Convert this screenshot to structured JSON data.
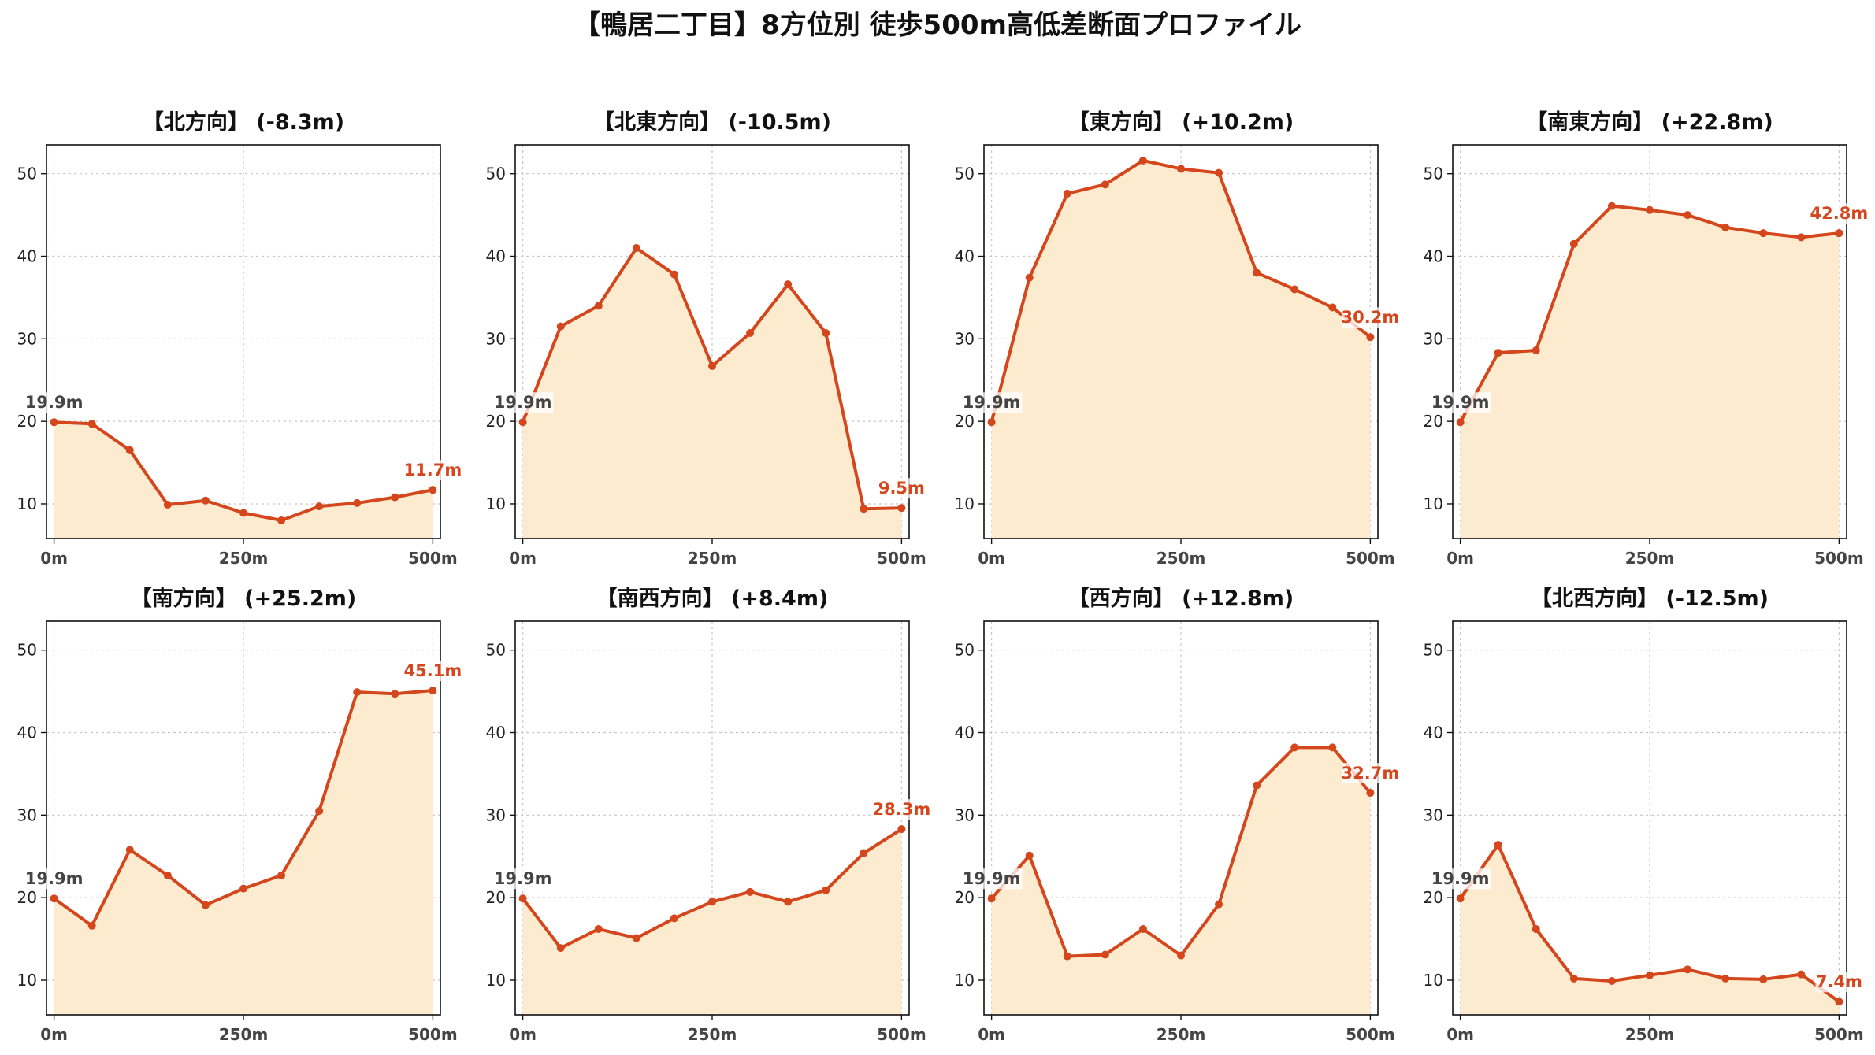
{
  "title": "【鴨居二丁目】8方位別 徒歩500m高低差断面プロファイル",
  "colors": {
    "line": "#d4461c",
    "fill": "#fdebd0",
    "grid": "#c8c8c8",
    "start_label": "#444444"
  },
  "chart_data": [
    {
      "type": "area",
      "title": "【北方向】 (-8.3m)",
      "start_label": "19.9m",
      "end_label": "11.7m",
      "x": [
        0,
        50,
        100,
        150,
        200,
        250,
        300,
        350,
        400,
        450,
        500
      ],
      "y": [
        19.9,
        19.7,
        16.5,
        9.9,
        10.4,
        8.9,
        8.0,
        9.7,
        10.1,
        10.8,
        11.7
      ],
      "xticks": [
        "0m",
        "250m",
        "500m"
      ],
      "yticks": [
        10,
        20,
        30,
        40,
        50
      ],
      "xlim": [
        -10,
        510
      ],
      "ylim": [
        5.8,
        53.5
      ],
      "grid": true
    },
    {
      "type": "area",
      "title": "【北東方向】 (-10.5m)",
      "start_label": "19.9m",
      "end_label": "9.5m",
      "x": [
        0,
        50,
        100,
        150,
        200,
        250,
        300,
        350,
        400,
        450,
        500
      ],
      "y": [
        19.9,
        31.5,
        34.0,
        41.0,
        37.8,
        26.7,
        30.7,
        36.6,
        30.7,
        9.4,
        9.5
      ],
      "xticks": [
        "0m",
        "250m",
        "500m"
      ],
      "yticks": [
        10,
        20,
        30,
        40,
        50
      ],
      "xlim": [
        -10,
        510
      ],
      "ylim": [
        5.8,
        53.5
      ],
      "grid": true
    },
    {
      "type": "area",
      "title": "【東方向】 (+10.2m)",
      "start_label": "19.9m",
      "end_label": "30.2m",
      "x": [
        0,
        50,
        100,
        150,
        200,
        250,
        300,
        350,
        400,
        450,
        500
      ],
      "y": [
        19.9,
        37.4,
        47.6,
        48.7,
        51.6,
        50.6,
        50.1,
        38.0,
        36.0,
        33.8,
        30.2
      ],
      "xticks": [
        "0m",
        "250m",
        "500m"
      ],
      "yticks": [
        10,
        20,
        30,
        40,
        50
      ],
      "xlim": [
        -10,
        510
      ],
      "ylim": [
        5.8,
        53.5
      ],
      "grid": true
    },
    {
      "type": "area",
      "title": "【南東方向】 (+22.8m)",
      "start_label": "19.9m",
      "end_label": "42.8m",
      "x": [
        0,
        50,
        100,
        150,
        200,
        250,
        300,
        350,
        400,
        450,
        500
      ],
      "y": [
        19.9,
        28.3,
        28.6,
        41.5,
        46.1,
        45.6,
        45.0,
        43.5,
        42.8,
        42.3,
        42.8
      ],
      "xticks": [
        "0m",
        "250m",
        "500m"
      ],
      "yticks": [
        10,
        20,
        30,
        40,
        50
      ],
      "xlim": [
        -10,
        510
      ],
      "ylim": [
        5.8,
        53.5
      ],
      "grid": true
    },
    {
      "type": "area",
      "title": "【南方向】 (+25.2m)",
      "start_label": "19.9m",
      "end_label": "45.1m",
      "x": [
        0,
        50,
        100,
        150,
        200,
        250,
        300,
        350,
        400,
        450,
        500
      ],
      "y": [
        19.9,
        16.6,
        25.8,
        22.7,
        19.1,
        21.1,
        22.7,
        30.5,
        44.9,
        44.7,
        45.1
      ],
      "xticks": [
        "0m",
        "250m",
        "500m"
      ],
      "yticks": [
        10,
        20,
        30,
        40,
        50
      ],
      "xlim": [
        -10,
        510
      ],
      "ylim": [
        5.8,
        53.5
      ],
      "grid": true
    },
    {
      "type": "area",
      "title": "【南西方向】 (+8.4m)",
      "start_label": "19.9m",
      "end_label": "28.3m",
      "x": [
        0,
        50,
        100,
        150,
        200,
        250,
        300,
        350,
        400,
        450,
        500
      ],
      "y": [
        19.9,
        13.9,
        16.2,
        15.1,
        17.5,
        19.5,
        20.7,
        19.5,
        20.9,
        25.4,
        28.3
      ],
      "xticks": [
        "0m",
        "250m",
        "500m"
      ],
      "yticks": [
        10,
        20,
        30,
        40,
        50
      ],
      "xlim": [
        -10,
        510
      ],
      "ylim": [
        5.8,
        53.5
      ],
      "grid": true
    },
    {
      "type": "area",
      "title": "【西方向】 (+12.8m)",
      "start_label": "19.9m",
      "end_label": "32.7m",
      "x": [
        0,
        50,
        100,
        150,
        200,
        250,
        300,
        350,
        400,
        450,
        500
      ],
      "y": [
        19.9,
        25.1,
        12.9,
        13.1,
        16.2,
        13.0,
        19.2,
        33.6,
        38.2,
        38.2,
        32.7
      ],
      "xticks": [
        "0m",
        "250m",
        "500m"
      ],
      "yticks": [
        10,
        20,
        30,
        40,
        50
      ],
      "xlim": [
        -10,
        510
      ],
      "ylim": [
        5.8,
        53.5
      ],
      "grid": true
    },
    {
      "type": "area",
      "title": "【北西方向】 (-12.5m)",
      "start_label": "19.9m",
      "end_label": "7.4m",
      "x": [
        0,
        50,
        100,
        150,
        200,
        250,
        300,
        350,
        400,
        450,
        500
      ],
      "y": [
        19.9,
        26.4,
        16.2,
        10.2,
        9.9,
        10.6,
        11.3,
        10.2,
        10.1,
        10.7,
        7.4
      ],
      "xticks": [
        "0m",
        "250m",
        "500m"
      ],
      "yticks": [
        10,
        20,
        30,
        40,
        50
      ],
      "xlim": [
        -10,
        510
      ],
      "ylim": [
        5.8,
        53.5
      ],
      "grid": true
    }
  ]
}
